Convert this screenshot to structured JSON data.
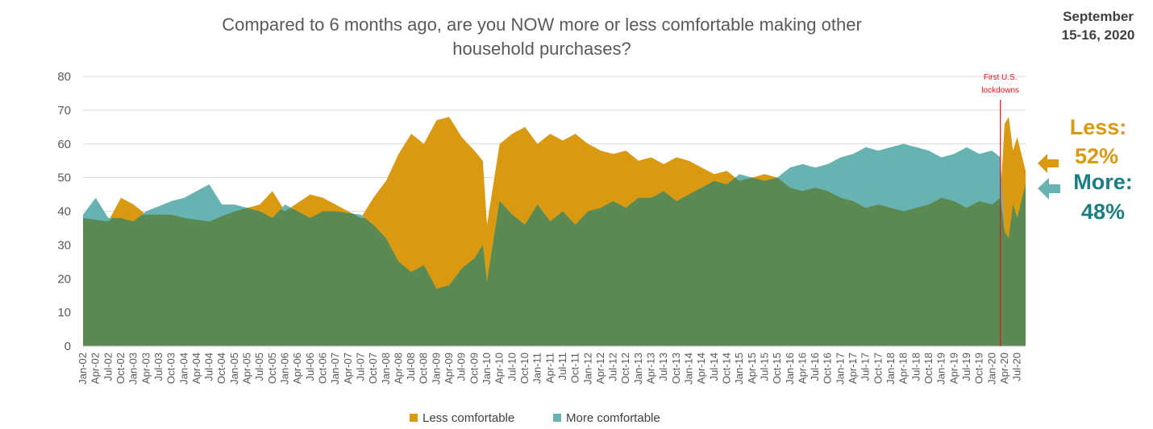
{
  "chart_data": {
    "type": "area",
    "title_lines": [
      "Compared to 6 months ago, are you NOW more or less comfortable making other",
      "household purchases?"
    ],
    "date_label_lines": [
      "September",
      "15-16, 2020"
    ],
    "ylim": [
      0,
      80
    ],
    "yticks": [
      "0",
      "10",
      "20",
      "30",
      "40",
      "50",
      "60",
      "70",
      "80"
    ],
    "grid": true,
    "legend_position": "bottom",
    "x_start": "Jan-02",
    "x_end": "Sep-20",
    "xtick_labels": [
      "Jan-02",
      "Apr-02",
      "Jul-02",
      "Oct-02",
      "Jan-03",
      "Apr-03",
      "Jul-03",
      "Oct-03",
      "Jan-04",
      "Apr-04",
      "Jul-04",
      "Oct-04",
      "Jan-05",
      "Apr-05",
      "Jul-05",
      "Oct-05",
      "Jan-06",
      "Apr-06",
      "Jul-06",
      "Oct-06",
      "Jan-07",
      "Apr-07",
      "Jul-07",
      "Oct-07",
      "Jan-08",
      "Apr-08",
      "Jul-08",
      "Oct-08",
      "Jan-09",
      "Apr-09",
      "Jul-09",
      "Oct-09",
      "Jan-10",
      "Apr-10",
      "Jul-10",
      "Oct-10",
      "Jan-11",
      "Apr-11",
      "Jul-11",
      "Oct-11",
      "Jan-12",
      "Apr-12",
      "Jul-12",
      "Oct-12",
      "Jan-13",
      "Apr-13",
      "Jul-13",
      "Oct-13",
      "Jan-14",
      "Apr-14",
      "Jul-14",
      "Oct-14",
      "Jan-15",
      "Apr-15",
      "Jul-15",
      "Oct-15",
      "Jan-16",
      "Apr-16",
      "Jul-16",
      "Oct-16",
      "Jan-17",
      "Apr-17",
      "Jul-17",
      "Oct-17",
      "Jan-18",
      "Apr-18",
      "Jul-18",
      "Oct-18",
      "Jan-19",
      "Apr-19",
      "Jul-19",
      "Oct-19",
      "Jan-20",
      "Apr-20",
      "Jul-20"
    ],
    "series": [
      {
        "name": "Less comfortable",
        "color": "#d99a12",
        "points": [
          [
            "Jan-02",
            38
          ],
          [
            "Jul-02",
            37
          ],
          [
            "Oct-02",
            44
          ],
          [
            "Jan-03",
            42
          ],
          [
            "Apr-03",
            39
          ],
          [
            "Oct-03",
            39
          ],
          [
            "Jan-04",
            38
          ],
          [
            "Jul-04",
            37
          ],
          [
            "Jan-05",
            40
          ],
          [
            "Jul-05",
            42
          ],
          [
            "Oct-05",
            46
          ],
          [
            "Jan-06",
            40
          ],
          [
            "Jul-06",
            45
          ],
          [
            "Oct-06",
            44
          ],
          [
            "Jan-07",
            42
          ],
          [
            "Jul-07",
            38
          ],
          [
            "Oct-07",
            44
          ],
          [
            "Jan-08",
            49
          ],
          [
            "Apr-08",
            57
          ],
          [
            "Jul-08",
            63
          ],
          [
            "Oct-08",
            60
          ],
          [
            "Jan-09",
            67
          ],
          [
            "Apr-09",
            68
          ],
          [
            "Jul-09",
            62
          ],
          [
            "Oct-09",
            58
          ],
          [
            "Dec-09",
            55
          ],
          [
            "Jan-10",
            36
          ],
          [
            "Apr-10",
            60
          ],
          [
            "Jul-10",
            63
          ],
          [
            "Oct-10",
            65
          ],
          [
            "Jan-11",
            60
          ],
          [
            "Apr-11",
            63
          ],
          [
            "Jul-11",
            61
          ],
          [
            "Oct-11",
            63
          ],
          [
            "Jan-12",
            60
          ],
          [
            "Apr-12",
            58
          ],
          [
            "Jul-12",
            57
          ],
          [
            "Oct-12",
            58
          ],
          [
            "Jan-13",
            55
          ],
          [
            "Apr-13",
            56
          ],
          [
            "Jul-13",
            54
          ],
          [
            "Oct-13",
            56
          ],
          [
            "Jan-14",
            55
          ],
          [
            "Apr-14",
            53
          ],
          [
            "Jul-14",
            51
          ],
          [
            "Oct-14",
            52
          ],
          [
            "Jan-15",
            49
          ],
          [
            "Apr-15",
            50
          ],
          [
            "Jul-15",
            51
          ],
          [
            "Oct-15",
            50
          ],
          [
            "Jan-16",
            47
          ],
          [
            "Apr-16",
            46
          ],
          [
            "Jul-16",
            47
          ],
          [
            "Oct-16",
            46
          ],
          [
            "Jan-17",
            44
          ],
          [
            "Apr-17",
            43
          ],
          [
            "Jul-17",
            41
          ],
          [
            "Oct-17",
            42
          ],
          [
            "Jan-18",
            41
          ],
          [
            "Apr-18",
            40
          ],
          [
            "Jul-18",
            41
          ],
          [
            "Oct-18",
            42
          ],
          [
            "Jan-19",
            44
          ],
          [
            "Apr-19",
            43
          ],
          [
            "Jul-19",
            41
          ],
          [
            "Oct-19",
            43
          ],
          [
            "Jan-20",
            42
          ],
          [
            "Mar-20",
            44
          ],
          [
            "Apr-20",
            66
          ],
          [
            "May-20",
            68
          ],
          [
            "Jun-20",
            58
          ],
          [
            "Jul-20",
            62
          ],
          [
            "Aug-20",
            57
          ],
          [
            "Sep-20",
            52
          ]
        ]
      },
      {
        "name": "More comfortable",
        "color": "#66b3b1",
        "points": [
          [
            "Jan-02",
            39
          ],
          [
            "Apr-02",
            44
          ],
          [
            "Jul-02",
            38
          ],
          [
            "Oct-02",
            38
          ],
          [
            "Jan-03",
            37
          ],
          [
            "Apr-03",
            40
          ],
          [
            "Oct-03",
            43
          ],
          [
            "Jan-04",
            44
          ],
          [
            "Jul-04",
            48
          ],
          [
            "Oct-04",
            42
          ],
          [
            "Jan-05",
            42
          ],
          [
            "Jul-05",
            40
          ],
          [
            "Oct-05",
            38
          ],
          [
            "Jan-06",
            42
          ],
          [
            "Jul-06",
            38
          ],
          [
            "Oct-06",
            40
          ],
          [
            "Jan-07",
            40
          ],
          [
            "Jul-07",
            39
          ],
          [
            "Oct-07",
            36
          ],
          [
            "Jan-08",
            32
          ],
          [
            "Apr-08",
            25
          ],
          [
            "Jul-08",
            22
          ],
          [
            "Oct-08",
            24
          ],
          [
            "Jan-09",
            17
          ],
          [
            "Apr-09",
            18
          ],
          [
            "Jul-09",
            23
          ],
          [
            "Oct-09",
            26
          ],
          [
            "Dec-09",
            30
          ],
          [
            "Jan-10",
            19
          ],
          [
            "Apr-10",
            43
          ],
          [
            "Jul-10",
            39
          ],
          [
            "Oct-10",
            36
          ],
          [
            "Jan-11",
            42
          ],
          [
            "Apr-11",
            37
          ],
          [
            "Jul-11",
            40
          ],
          [
            "Oct-11",
            36
          ],
          [
            "Jan-12",
            40
          ],
          [
            "Apr-12",
            41
          ],
          [
            "Jul-12",
            43
          ],
          [
            "Oct-12",
            41
          ],
          [
            "Jan-13",
            44
          ],
          [
            "Apr-13",
            44
          ],
          [
            "Jul-13",
            46
          ],
          [
            "Oct-13",
            43
          ],
          [
            "Jan-14",
            45
          ],
          [
            "Apr-14",
            47
          ],
          [
            "Jul-14",
            49
          ],
          [
            "Oct-14",
            48
          ],
          [
            "Jan-15",
            51
          ],
          [
            "Apr-15",
            50
          ],
          [
            "Jul-15",
            49
          ],
          [
            "Oct-15",
            50
          ],
          [
            "Jan-16",
            53
          ],
          [
            "Apr-16",
            54
          ],
          [
            "Jul-16",
            53
          ],
          [
            "Oct-16",
            54
          ],
          [
            "Jan-17",
            56
          ],
          [
            "Apr-17",
            57
          ],
          [
            "Jul-17",
            59
          ],
          [
            "Oct-17",
            58
          ],
          [
            "Jan-18",
            59
          ],
          [
            "Apr-18",
            60
          ],
          [
            "Jul-18",
            59
          ],
          [
            "Oct-18",
            58
          ],
          [
            "Jan-19",
            56
          ],
          [
            "Apr-19",
            57
          ],
          [
            "Jul-19",
            59
          ],
          [
            "Oct-19",
            57
          ],
          [
            "Jan-20",
            58
          ],
          [
            "Mar-20",
            56
          ],
          [
            "Apr-20",
            34
          ],
          [
            "May-20",
            32
          ],
          [
            "Jun-20",
            42
          ],
          [
            "Jul-20",
            38
          ],
          [
            "Aug-20",
            43
          ],
          [
            "Sep-20",
            48
          ]
        ]
      }
    ],
    "annotation": {
      "at": "Mar-20",
      "text_lines": [
        "First U.S.",
        "lockdowns"
      ],
      "color": "#e8101b"
    },
    "callouts": [
      {
        "label": "Less:",
        "value": "52%",
        "color": "#d99a12"
      },
      {
        "label": "More:",
        "value": "48%",
        "color": "#1b7e83"
      }
    ],
    "legend": [
      {
        "label": "Less comfortable",
        "color": "#d99a12"
      },
      {
        "label": "More comfortable",
        "color": "#66b3b1"
      }
    ],
    "overlap_color": "#5a8a52"
  }
}
